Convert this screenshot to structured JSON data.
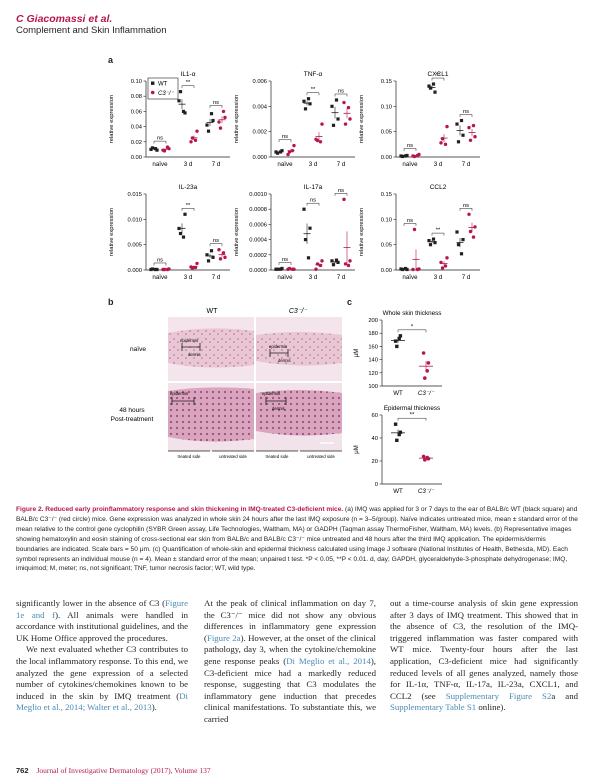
{
  "header": {
    "authors": "C Giacomassi et al.",
    "title": "Complement and Skin Inflammation"
  },
  "panels": {
    "a": "a",
    "b": "b",
    "c": "c"
  },
  "legend": {
    "wt": "WT",
    "c3": "C3⁻/⁻"
  },
  "colors": {
    "wt": "#231f20",
    "c3": "#b5174b",
    "accent": "#b5174b",
    "link": "#4a8ab4"
  },
  "ylabel": "relative expression",
  "chart_data": [
    {
      "type": "scatter",
      "title": "IL1-α",
      "categories": [
        "naïve",
        "3 d",
        "7 d"
      ],
      "ylim": [
        0,
        0.1
      ],
      "yticks": [
        "0.00",
        "0.02",
        "0.04",
        "0.06",
        "0.08",
        "0.10"
      ],
      "ytick_values": [
        0,
        0.02,
        0.04,
        0.06,
        0.08,
        0.1
      ],
      "sig": [
        {
          "g": 0,
          "label": "ns"
        },
        {
          "g": 1,
          "label": "**"
        },
        {
          "g": 2,
          "label": "ns"
        }
      ],
      "series": [
        {
          "name": "WT",
          "values": [
            [
              0.01,
              0.009,
              0.012,
              0.011
            ],
            [
              0.074,
              0.058,
              0.086,
              0.06
            ],
            [
              0.042,
              0.048,
              0.034,
              0.057
            ]
          ]
        },
        {
          "name": "C3⁻/⁻",
          "values": [
            [
              0.009,
              0.011,
              0.008,
              0.013
            ],
            [
              0.02,
              0.034,
              0.025,
              0.022
            ],
            [
              0.046,
              0.052,
              0.038,
              0.06
            ]
          ]
        }
      ]
    },
    {
      "type": "scatter",
      "title": "TNF-α",
      "categories": [
        "naïve",
        "3 d",
        "7 d"
      ],
      "ylim": [
        0,
        0.006
      ],
      "yticks": [
        "0.000",
        "0.002",
        "0.004",
        "0.006"
      ],
      "ytick_values": [
        0,
        0.002,
        0.004,
        0.006
      ],
      "sig": [
        {
          "g": 0,
          "label": "ns"
        },
        {
          "g": 1,
          "label": "**"
        },
        {
          "g": 2,
          "label": "ns"
        }
      ],
      "series": [
        {
          "name": "WT",
          "values": [
            [
              0.0004,
              0.0005,
              0.0003,
              0.0004
            ],
            [
              0.0044,
              0.0042,
              0.0038,
              0.0046
            ],
            [
              0.004,
              0.003,
              0.0025,
              0.0045
            ]
          ]
        },
        {
          "name": "C3⁻/⁻",
          "values": [
            [
              0.0002,
              0.0009,
              0.0004,
              0.0005
            ],
            [
              0.0014,
              0.0026,
              0.0013,
              0.0012
            ],
            [
              0.0043,
              0.003,
              0.0026,
              0.0039
            ]
          ]
        }
      ]
    },
    {
      "type": "scatter",
      "title": "CXCL1",
      "categories": [
        "naïve",
        "3 d",
        "7 d"
      ],
      "ylim": [
        0,
        0.15
      ],
      "yticks": [
        "0.00",
        "0.05",
        "0.10",
        "0.15"
      ],
      "ytick_values": [
        0,
        0.05,
        0.1,
        0.15
      ],
      "sig": [
        {
          "g": 0,
          "label": "ns"
        },
        {
          "g": 1,
          "label": "**"
        },
        {
          "g": 2,
          "label": "ns"
        }
      ],
      "series": [
        {
          "name": "WT",
          "values": [
            [
              0.002,
              0.003,
              0.001,
              0.002
            ],
            [
              0.14,
              0.128,
              0.136,
              0.144
            ],
            [
              0.065,
              0.043,
              0.03,
              0.072
            ]
          ]
        },
        {
          "name": "C3⁻/⁻",
          "values": [
            [
              0.002,
              0.005,
              0.001,
              0.003
            ],
            [
              0.028,
              0.06,
              0.036,
              0.025
            ],
            [
              0.058,
              0.04,
              0.033,
              0.062
            ]
          ]
        }
      ]
    },
    {
      "type": "scatter",
      "title": "IL-23a",
      "categories": [
        "naïve",
        "3 d",
        "7 d"
      ],
      "ylim": [
        0,
        0.015
      ],
      "yticks": [
        "0.000",
        "0.005",
        "0.010",
        "0.015"
      ],
      "ytick_values": [
        0,
        0.005,
        0.01,
        0.015
      ],
      "sig": [
        {
          "g": 0,
          "label": "ns"
        },
        {
          "g": 1,
          "label": "**"
        },
        {
          "g": 2,
          "label": "ns"
        }
      ],
      "series": [
        {
          "name": "WT",
          "values": [
            [
              0.0001,
              0.0001,
              0.0002,
              0.0001
            ],
            [
              0.0082,
              0.011,
              0.0072,
              0.0065
            ],
            [
              0.003,
              0.0025,
              0.0018,
              0.0038
            ]
          ]
        },
        {
          "name": "C3⁻/⁻",
          "values": [
            [
              0.0001,
              0.0002,
              0.0001,
              0.0001
            ],
            [
              0.0006,
              0.0013,
              0.0004,
              0.0005
            ],
            [
              0.004,
              0.0025,
              0.0022,
              0.0034
            ]
          ]
        }
      ]
    },
    {
      "type": "scatter",
      "title": "IL-17a",
      "categories": [
        "naïve",
        "3 d",
        "7 d"
      ],
      "ylim": [
        0,
        0.001
      ],
      "yticks": [
        "0.0000",
        "0.0002",
        "0.0004",
        "0.0006",
        "0.0008",
        "0.0010"
      ],
      "ytick_values": [
        0,
        0.0002,
        0.0004,
        0.0006,
        0.0008,
        0.001
      ],
      "sig": [
        {
          "g": 0,
          "label": "ns"
        },
        {
          "g": 1,
          "label": "ns"
        },
        {
          "g": 2,
          "label": "ns"
        }
      ],
      "series": [
        {
          "name": "WT",
          "values": [
            [
              1e-05,
              2e-05,
              1e-05,
              1e-05
            ],
            [
              0.0008,
              0.00055,
              0.0004,
              0.00016
            ],
            [
              0.00012,
              0.0001,
              7e-05,
              0.00013
            ]
          ]
        },
        {
          "name": "C3⁻/⁻",
          "values": [
            [
              1e-05,
              1e-05,
              2e-05,
              1e-05
            ],
            [
              1e-05,
              0.00012,
              8e-05,
              6e-05
            ],
            [
              0.00093,
              0.00012,
              8e-05,
              6e-05
            ]
          ]
        }
      ]
    },
    {
      "type": "scatter",
      "title": "CCL2",
      "categories": [
        "naïve",
        "3 d",
        "7 d"
      ],
      "ylim": [
        0,
        0.15
      ],
      "yticks": [
        "0.00",
        "0.05",
        "0.10",
        "0.15"
      ],
      "ytick_values": [
        0,
        0.05,
        0.1,
        0.15
      ],
      "sig": [
        {
          "g": 0,
          "label": "ns"
        },
        {
          "g": 1,
          "label": "**"
        },
        {
          "g": 2,
          "label": "ns"
        }
      ],
      "series": [
        {
          "name": "WT",
          "values": [
            [
              0.002,
              0.001,
              0.001,
              0.003
            ],
            [
              0.058,
              0.054,
              0.05,
              0.061
            ],
            [
              0.075,
              0.06,
              0.05,
              0.032
            ]
          ]
        },
        {
          "name": "C3⁻/⁻",
          "values": [
            [
              0.001,
              0.002,
              0.08,
              0.001
            ],
            [
              0.015,
              0.024,
              0.004,
              0.008
            ],
            [
              0.11,
              0.085,
              0.076,
              0.065
            ]
          ]
        }
      ]
    },
    {
      "type": "scatter",
      "title": "Whole skin thickness",
      "categories": [
        "WT",
        "C3⁻/⁻"
      ],
      "ylabel": "μM",
      "ylim": [
        100,
        200
      ],
      "yticks": [
        "100",
        "120",
        "140",
        "160",
        "180",
        "200"
      ],
      "ytick_values": [
        100,
        120,
        140,
        160,
        180,
        200
      ],
      "sig": [
        {
          "g": 0,
          "label": "*"
        }
      ],
      "values": [
        [
          168,
          176,
          160,
          172
        ],
        [
          150,
          135,
          112,
          123
        ]
      ]
    },
    {
      "type": "scatter",
      "title": "Epidermal thickness",
      "categories": [
        "WT",
        "C3⁻/⁻"
      ],
      "ylabel": "μM",
      "ylim": [
        0,
        60
      ],
      "yticks": [
        "0",
        "20",
        "40",
        "60"
      ],
      "ytick_values": [
        0,
        20,
        40,
        60
      ],
      "sig": [
        {
          "g": 0,
          "label": "**"
        }
      ],
      "values": [
        [
          52,
          45,
          38,
          43
        ],
        [
          24,
          22,
          21,
          23
        ]
      ]
    }
  ],
  "histology": {
    "col_wt": "WT",
    "col_c3": "C3⁻/⁻",
    "row_naive": "naïve",
    "row_48_1": "48 hours",
    "row_48_2": "Post-treatment",
    "epidermis": "epidermis",
    "dermis": "dermis",
    "treated_side": "treated side",
    "untreated_side": "untreated side"
  },
  "caption": {
    "lead": "Figure 2. Reduced early proinflammatory response and skin thickening in IMQ-treated C3-deficient mice.",
    "body": " (a) IMQ was applied for 3 or 7 days to the ear of BALB/c WT (black square) and BALB/c C3⁻/⁻ (red circle) mice. Gene expression was analyzed in whole skin 24 hours after the last IMQ exposure (n = 3–5/group). Naïve indicates untreated mice, mean ± standard error of the mean relative to the control gene cyclophilin (SYBR Green assay, Life Technologies, Waltham, MA) or GADPH (Taqman assay ThermoFisher, Waltham, MA) levels. (b) Representative images showing hematoxylin and eosin staining of cross-sectional ear skin from BALB/c and BALB/c C3⁻/⁻ mice untreated and 48 hours after the third IMQ application. The epidermis/dermis boundaries are indicated. Scale bars = 50 μm. (c) Quantification of whole-skin and epidermal thickness calculated using Image J software (National Institutes of Health, Bethesda, MD). Each symbol represents an individual mouse (n = 4). Mean ± standard error of the mean; unpaired t test. *P < 0.05, **P < 0.01. d, day; GAPDH, glyceraldehyde-3-phosphate dehydrogenase; IMQ, imiquimod; M, meter; ns, not significant; TNF, tumor necrosis factor; WT, wild type."
  },
  "text": {
    "c1a": "significantly lower in the absence of C3 (",
    "c1a_cite": "Figure 1e and f",
    "c1b": "). All animals were handled in accordance with institutional guidelines, and the UK Home Office approved the procedures.",
    "c1c": "We next evaluated whether C3 contributes to the local inflammatory response. To this end, we analyzed the gene expression of a selected number of cytokines/chemokines known to be induced in the skin by IMQ treatment (",
    "c1c_cite": "Di Meglio et al., 2014; Walter et al., 2013",
    "c1d": ").",
    "c2a": "At the peak of clinical inflammation on day 7, the C3⁻/⁻ mice did not show any obvious differences in inflammatory gene expression (",
    "c2a_cite": "Figure 2a",
    "c2b": "). However, at the onset of the clinical pathology, day 3, when the cytokine/chemokine gene response peaks (",
    "c2b_cite": "Di Meglio et al., 2014",
    "c2c": "), C3-deficient mice had a markedly reduced response, suggesting that C3 modulates the inflammatory gene induction that precedes clinical manifestations. To substantiate this, we carried",
    "c3a": "out a time-course analysis of skin gene expression after 3 days of IMQ treatment. This showed that in the absence of C3, the resolution of the IMQ-triggered inflammation was faster compared with WT mice. Twenty-four hours after the last application, C3-deficient mice had significantly reduced levels of all genes analyzed, namely those for IL-1α, TNF-α, IL-17a, IL-23a, CXCL1, and CCL2 (see ",
    "c3a_cite": "Supplementary Figure S2",
    "c3b": "a and ",
    "c3b_cite": "Supplementary Table S1",
    "c3c": " online)."
  },
  "footer": {
    "page": "762",
    "journal": "Journal of Investigative Dermatology (2017), Volume 137"
  }
}
